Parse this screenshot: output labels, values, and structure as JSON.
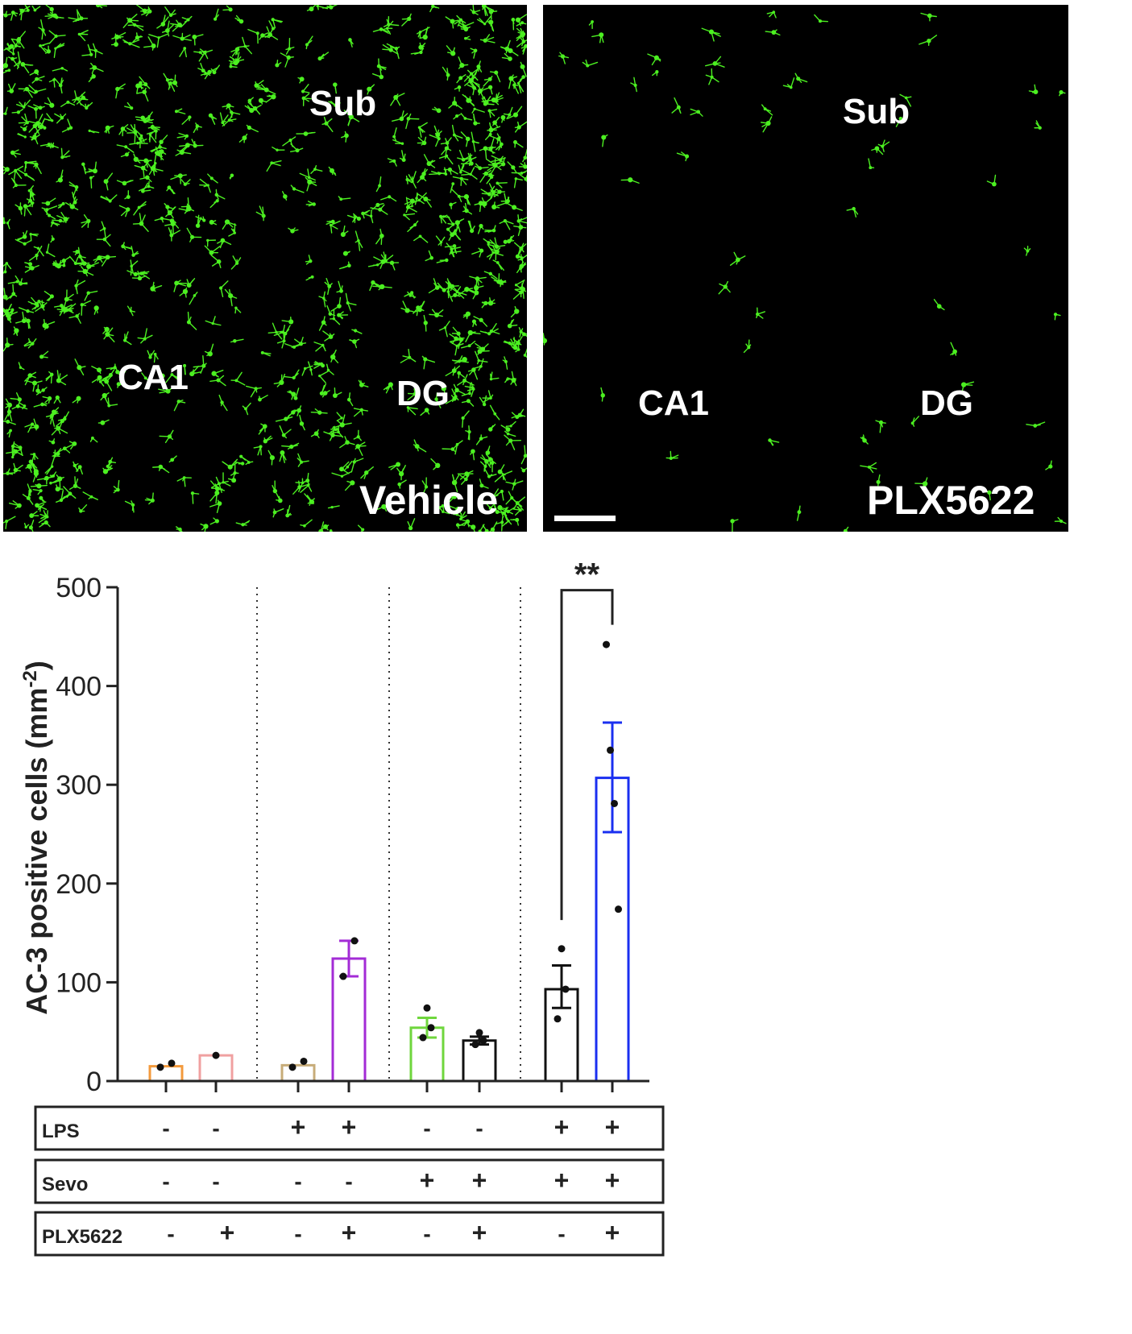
{
  "panels": [
    {
      "condition_label": "Vehicle",
      "regions": [
        "Sub",
        "CA1",
        "DG"
      ]
    },
    {
      "condition_label": "PLX5622",
      "regions": [
        "Sub",
        "CA1",
        "DG"
      ]
    }
  ],
  "colors": {
    "microglia": "#4cf021",
    "background": "#000000"
  },
  "chart_data": {
    "type": "bar",
    "ylabel": "AC-3 positive cells (mm",
    "ylabel_superscript": "-2",
    "ylabel_suffix": ")",
    "ylim": [
      0,
      500
    ],
    "yticks": [
      "0",
      "100",
      "200",
      "300",
      "400",
      "500"
    ],
    "groups": [
      {
        "lps": "-",
        "sevo": "-",
        "plx5622": "-",
        "mean": 15,
        "sem_low": 15,
        "sem_high": 15,
        "color": "#f39a3c",
        "points": [
          14,
          18
        ]
      },
      {
        "lps": "-",
        "sevo": "-",
        "plx5622": "+",
        "mean": 26,
        "sem_low": 26,
        "sem_high": 26,
        "color": "#f0a0a0",
        "points": [
          26
        ]
      },
      {
        "lps": "+",
        "sevo": "-",
        "plx5622": "-",
        "mean": 16,
        "sem_low": 16,
        "sem_high": 16,
        "color": "#c7ac79",
        "points": [
          14,
          20
        ]
      },
      {
        "lps": "+",
        "sevo": "-",
        "plx5622": "+",
        "mean": 124,
        "sem_low": 106,
        "sem_high": 142,
        "color": "#a32bd6",
        "points": [
          106,
          142
        ]
      },
      {
        "lps": "-",
        "sevo": "+",
        "plx5622": "-",
        "mean": 54,
        "sem_low": 44,
        "sem_high": 64,
        "color": "#6fd63d",
        "points": [
          44,
          74,
          54
        ]
      },
      {
        "lps": "-",
        "sevo": "+",
        "plx5622": "+",
        "mean": 41,
        "sem_low": 37,
        "sem_high": 45,
        "color": "#111111",
        "points": [
          37,
          49,
          41
        ]
      },
      {
        "lps": "+",
        "sevo": "+",
        "plx5622": "-",
        "mean": 93,
        "sem_low": 74,
        "sem_high": 117,
        "color": "#111111",
        "points": [
          63,
          134,
          93
        ]
      },
      {
        "lps": "+",
        "sevo": "+",
        "plx5622": "+",
        "mean": 307,
        "sem_low": 252,
        "sem_high": 363,
        "color": "#1a2ff0",
        "points": [
          442,
          335,
          281,
          174
        ]
      }
    ],
    "significance": {
      "from_group": 6,
      "to_group": 7,
      "label": "**"
    },
    "treatments": [
      {
        "label": "LPS",
        "key": "lps"
      },
      {
        "label": "Sevo",
        "key": "sevo"
      },
      {
        "label": "PLX5622",
        "key": "plx5622"
      }
    ],
    "grid": false
  }
}
